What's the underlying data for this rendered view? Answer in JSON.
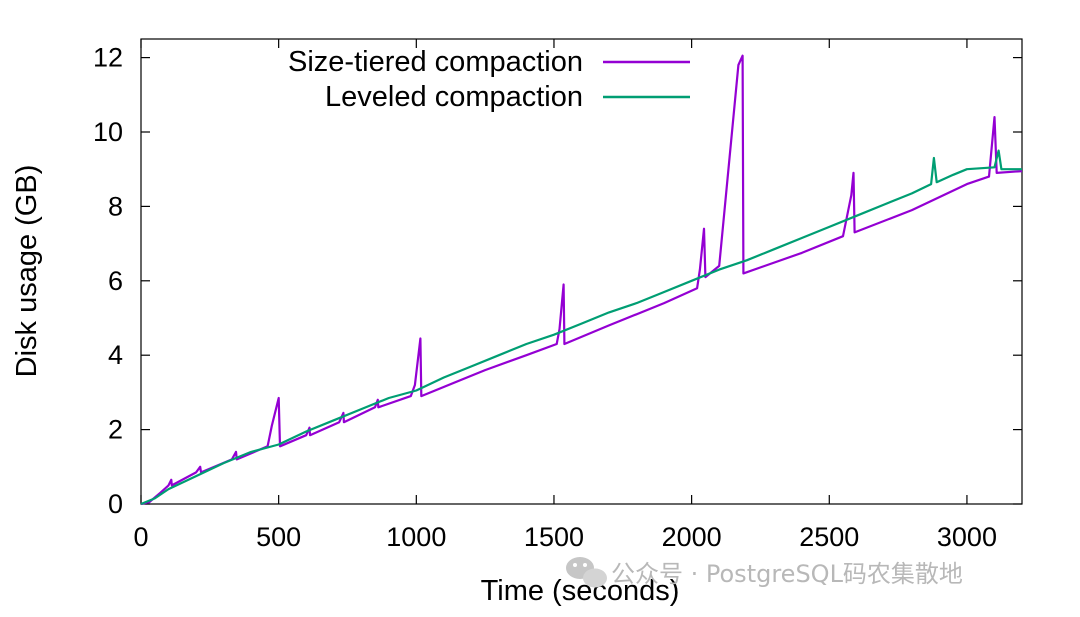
{
  "chart_data": {
    "type": "line",
    "title": "",
    "xlabel": "Time (seconds)",
    "ylabel": "Disk usage (GB)",
    "xlim": [
      0,
      3200
    ],
    "ylim": [
      0,
      12.5
    ],
    "x_ticks": [
      0,
      500,
      1000,
      1500,
      2000,
      2500,
      3000
    ],
    "y_ticks": [
      0,
      2,
      4,
      6,
      8,
      10,
      12
    ],
    "x_tick_labels": [
      "0",
      "500",
      "1000",
      "1500",
      "2000",
      "2500",
      "3000"
    ],
    "y_tick_labels": [
      "0",
      "2",
      "4",
      "6",
      "8",
      "10",
      "12"
    ],
    "grid": false,
    "legend_position": "top-center",
    "series": [
      {
        "name": "Size-tiered compaction",
        "color": "#9400d3",
        "points": [
          [
            0,
            0
          ],
          [
            30,
            0.05
          ],
          [
            70,
            0.3
          ],
          [
            100,
            0.5
          ],
          [
            110,
            0.65
          ],
          [
            112,
            0.5
          ],
          [
            200,
            0.85
          ],
          [
            215,
            1.0
          ],
          [
            218,
            0.85
          ],
          [
            330,
            1.2
          ],
          [
            345,
            1.4
          ],
          [
            348,
            1.2
          ],
          [
            460,
            1.55
          ],
          [
            475,
            2.1
          ],
          [
            500,
            2.85
          ],
          [
            505,
            1.55
          ],
          [
            600,
            1.85
          ],
          [
            612,
            2.05
          ],
          [
            614,
            1.85
          ],
          [
            720,
            2.2
          ],
          [
            735,
            2.45
          ],
          [
            737,
            2.2
          ],
          [
            850,
            2.6
          ],
          [
            860,
            2.8
          ],
          [
            862,
            2.6
          ],
          [
            980,
            2.9
          ],
          [
            995,
            3.2
          ],
          [
            1015,
            4.45
          ],
          [
            1018,
            2.9
          ],
          [
            1250,
            3.6
          ],
          [
            1400,
            4.0
          ],
          [
            1510,
            4.3
          ],
          [
            1520,
            4.7
          ],
          [
            1535,
            5.9
          ],
          [
            1538,
            4.3
          ],
          [
            1700,
            4.8
          ],
          [
            1900,
            5.4
          ],
          [
            2020,
            5.8
          ],
          [
            2030,
            6.3
          ],
          [
            2045,
            7.4
          ],
          [
            2050,
            6.1
          ],
          [
            2100,
            6.4
          ],
          [
            2170,
            11.8
          ],
          [
            2185,
            12.05
          ],
          [
            2188,
            6.2
          ],
          [
            2400,
            6.75
          ],
          [
            2550,
            7.2
          ],
          [
            2580,
            8.3
          ],
          [
            2588,
            8.9
          ],
          [
            2592,
            7.3
          ],
          [
            2800,
            7.9
          ],
          [
            3000,
            8.6
          ],
          [
            3080,
            8.8
          ],
          [
            3100,
            10.4
          ],
          [
            3108,
            8.9
          ],
          [
            3200,
            8.95
          ]
        ]
      },
      {
        "name": "Leveled compaction",
        "color": "#009e73",
        "points": [
          [
            0,
            0
          ],
          [
            50,
            0.15
          ],
          [
            100,
            0.4
          ],
          [
            200,
            0.75
          ],
          [
            300,
            1.1
          ],
          [
            400,
            1.4
          ],
          [
            500,
            1.6
          ],
          [
            600,
            1.95
          ],
          [
            700,
            2.25
          ],
          [
            800,
            2.55
          ],
          [
            900,
            2.85
          ],
          [
            1000,
            3.05
          ],
          [
            1100,
            3.4
          ],
          [
            1200,
            3.7
          ],
          [
            1300,
            4.0
          ],
          [
            1400,
            4.3
          ],
          [
            1500,
            4.55
          ],
          [
            1600,
            4.85
          ],
          [
            1700,
            5.15
          ],
          [
            1800,
            5.4
          ],
          [
            1900,
            5.7
          ],
          [
            2000,
            6.0
          ],
          [
            2100,
            6.3
          ],
          [
            2200,
            6.55
          ],
          [
            2300,
            6.85
          ],
          [
            2400,
            7.15
          ],
          [
            2500,
            7.45
          ],
          [
            2600,
            7.75
          ],
          [
            2700,
            8.05
          ],
          [
            2800,
            8.35
          ],
          [
            2870,
            8.6
          ],
          [
            2880,
            9.3
          ],
          [
            2890,
            8.65
          ],
          [
            2950,
            8.85
          ],
          [
            3000,
            9.0
          ],
          [
            3100,
            9.05
          ],
          [
            3115,
            9.5
          ],
          [
            3125,
            9.0
          ],
          [
            3200,
            9.0
          ]
        ]
      }
    ]
  },
  "watermark": {
    "text": "公众号 · PostgreSQL码农集散地",
    "icon": "wechat-icon"
  }
}
